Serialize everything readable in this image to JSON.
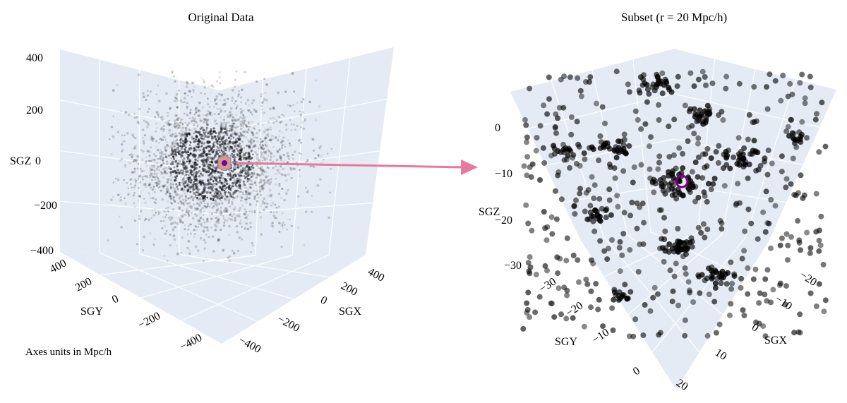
{
  "note": "Axes units in Mpc/h",
  "colors": {
    "pane": "#e5ebf5",
    "grid": "#ffffff",
    "points": "#000000",
    "marker": "#800080",
    "marker_box": "#cf9a9c",
    "arrow": "#e7799f"
  },
  "chart_data": [
    {
      "type": "scatter",
      "title": "Original Data",
      "xlabel": "SGX",
      "ylabel": "SGY",
      "zlabel": "SGZ",
      "xlim": [
        -400,
        400
      ],
      "ylim": [
        -400,
        400
      ],
      "zlim": [
        -400,
        400
      ],
      "x_ticks": [
        "-400",
        "-200",
        "0",
        "200",
        "400"
      ],
      "y_ticks": [
        "-400",
        "-200",
        "0",
        "200",
        "400"
      ],
      "z_ticks": [
        "-400",
        "-200",
        "0",
        "200",
        "400"
      ],
      "grid": true,
      "point_count_approx": 20000,
      "distribution": "dense roughly spherical cloud centered at (0,0,0), radius ~200 Mpc/h, extending toward ~350",
      "highlight": {
        "x": 0,
        "y": 0,
        "z": 0,
        "r": 20
      }
    },
    {
      "type": "scatter",
      "title": "Subset (r = 20 Mpc/h)",
      "xlabel": "SGX",
      "ylabel": "SGY",
      "zlabel": "SGZ",
      "xlim": [
        -20,
        20
      ],
      "ylim": [
        -35,
        5
      ],
      "zlim": [
        -35,
        5
      ],
      "x_ticks": [
        "-20",
        "-10",
        "0",
        "10",
        "20"
      ],
      "y_ticks": [
        "-30",
        "-20",
        "-10",
        "0"
      ],
      "z_ticks": [
        "-30",
        "-20",
        "-10",
        "0"
      ],
      "grid": true,
      "point_count_approx": 600,
      "highlight": {
        "x": 0,
        "y": -15,
        "z": -15
      }
    }
  ]
}
